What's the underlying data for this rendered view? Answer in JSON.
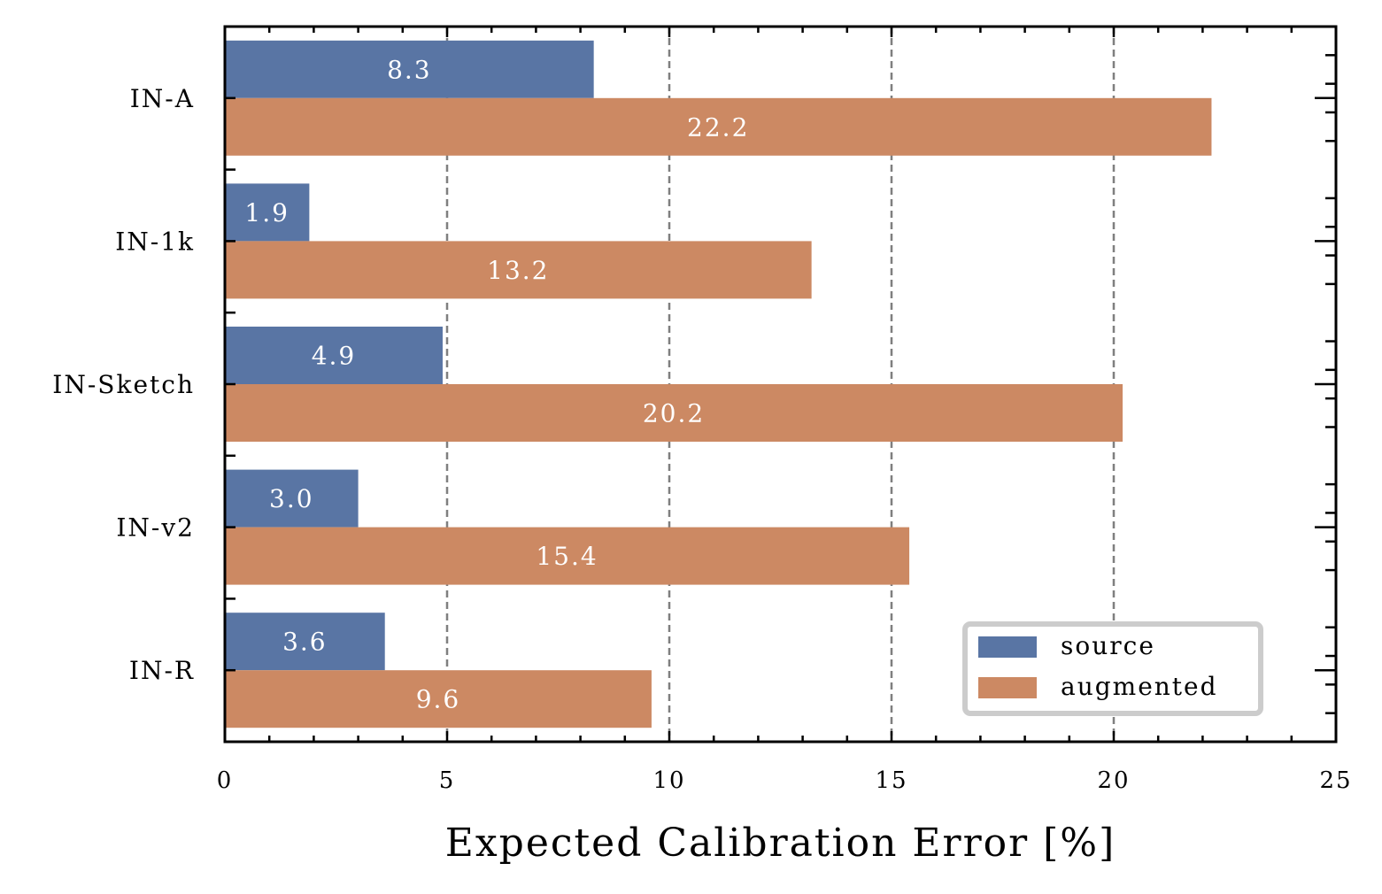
{
  "chart_data": {
    "type": "bar",
    "orientation": "horizontal",
    "title": "",
    "xlabel": "Expected Calibration Error [%]",
    "ylabel": "",
    "xlim": [
      0,
      25
    ],
    "xticks": [
      0,
      5,
      10,
      15,
      20,
      25
    ],
    "categories": [
      "IN-A",
      "IN-1k",
      "IN-Sketch",
      "IN-v2",
      "IN-R"
    ],
    "series": [
      {
        "name": "source",
        "color": "#5975a4",
        "values": [
          8.3,
          1.9,
          4.9,
          3.0,
          3.6
        ],
        "labels": [
          "8.3",
          "1.9",
          "4.9",
          "3.0",
          "3.6"
        ]
      },
      {
        "name": "augmented",
        "color": "#cc8963",
        "values": [
          22.2,
          13.2,
          20.2,
          15.4,
          9.6
        ],
        "labels": [
          "22.2",
          "13.2",
          "20.2",
          "15.4",
          "9.6"
        ]
      }
    ],
    "grid": "vertical dashed",
    "legend_position": "bottom-right"
  }
}
